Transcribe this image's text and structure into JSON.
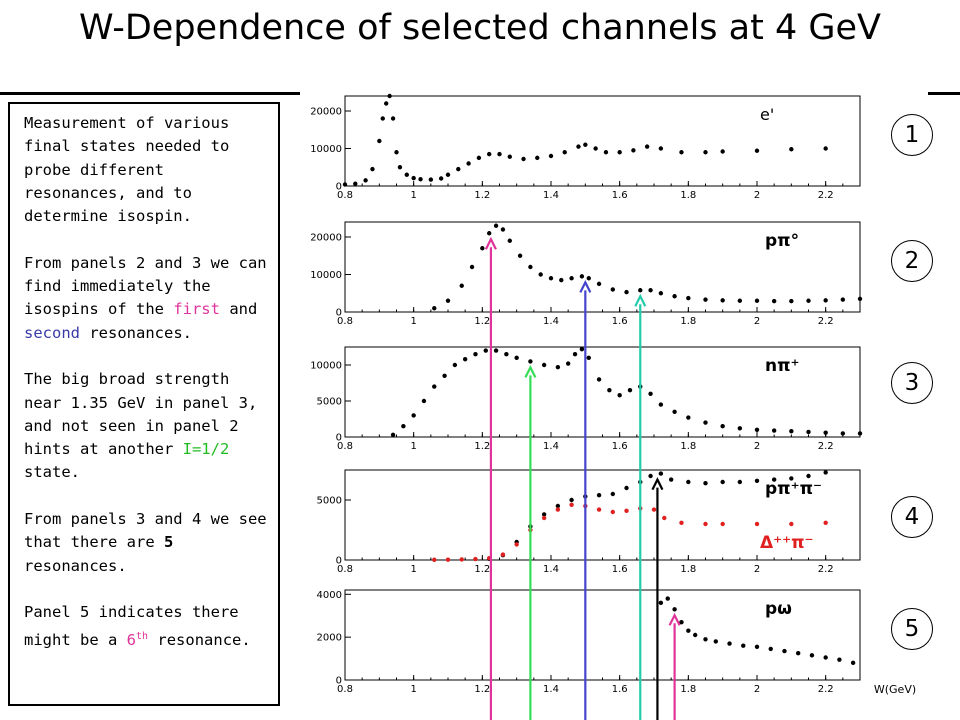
{
  "title": "W-Dependence of selected channels at 4 GeV",
  "textbox": {
    "p1": "Measurement of various final states needed to probe different resonances, and to determine isospin.",
    "p2_pre": "From panels 2 and 3 we can find immediately the isospins of the ",
    "p2_first": "first",
    "p2_mid": " and ",
    "p2_second": "second",
    "p2_post": " resonances.",
    "p3_pre": "The big broad strength near 1.35 GeV in panel 3, and not seen in panel 2 hints at another ",
    "p3_iso": "I=1/2",
    "p3_post": " state.",
    "p4_pre": "From panels 3 and 4 we see that there are ",
    "p4_num": "5",
    "p4_post": " resonances.",
    "p5_pre": "Panel 5 indicates there might be a ",
    "p5_num": "6",
    "p5_sup": "th",
    "p5_post": " resonance."
  },
  "panel_numbers": [
    "1",
    "2",
    "3",
    "4",
    "5"
  ],
  "xaxis_label": "W(GeV)",
  "chart_data": [
    {
      "type": "scatter",
      "panel": "1",
      "label": "e'",
      "xlim": [
        0.8,
        2.3
      ],
      "ylim": [
        0,
        24000
      ],
      "x_ticks": [
        "0.8",
        "1",
        "1.2",
        "1.4",
        "1.6",
        "1.8",
        "2",
        "2.2"
      ],
      "y_ticks": [
        "0",
        "10000",
        "20000"
      ],
      "series": [
        {
          "color": "#000000",
          "points": [
            [
              0.8,
              400
            ],
            [
              0.83,
              600
            ],
            [
              0.86,
              1500
            ],
            [
              0.88,
              4500
            ],
            [
              0.9,
              12000
            ],
            [
              0.91,
              18000
            ],
            [
              0.92,
              22000
            ],
            [
              0.93,
              24000
            ],
            [
              0.94,
              18000
            ],
            [
              0.95,
              9000
            ],
            [
              0.96,
              5000
            ],
            [
              0.98,
              3000
            ],
            [
              1.0,
              2100
            ],
            [
              1.02,
              1800
            ],
            [
              1.05,
              1700
            ],
            [
              1.08,
              2000
            ],
            [
              1.1,
              3000
            ],
            [
              1.13,
              4500
            ],
            [
              1.16,
              6000
            ],
            [
              1.19,
              7500
            ],
            [
              1.22,
              8500
            ],
            [
              1.25,
              8500
            ],
            [
              1.28,
              7800
            ],
            [
              1.32,
              7200
            ],
            [
              1.36,
              7500
            ],
            [
              1.4,
              8000
            ],
            [
              1.44,
              9000
            ],
            [
              1.48,
              10500
            ],
            [
              1.5,
              11000
            ],
            [
              1.53,
              10000
            ],
            [
              1.56,
              9000
            ],
            [
              1.6,
              9000
            ],
            [
              1.64,
              9500
            ],
            [
              1.68,
              10500
            ],
            [
              1.72,
              10000
            ],
            [
              1.78,
              9000
            ],
            [
              1.85,
              9000
            ],
            [
              1.9,
              9200
            ],
            [
              2.0,
              9400
            ],
            [
              2.1,
              9800
            ],
            [
              2.2,
              10000
            ]
          ]
        }
      ]
    },
    {
      "type": "scatter",
      "panel": "2",
      "label": "pπ°",
      "xlim": [
        0.8,
        2.3
      ],
      "ylim": [
        0,
        24000
      ],
      "x_ticks": [
        "0.8",
        "1",
        "1.2",
        "1.4",
        "1.6",
        "1.8",
        "2",
        "2.2"
      ],
      "y_ticks": [
        "0",
        "10000",
        "20000"
      ],
      "series": [
        {
          "color": "#000000",
          "points": [
            [
              1.06,
              1000
            ],
            [
              1.1,
              3000
            ],
            [
              1.14,
              7000
            ],
            [
              1.17,
              12000
            ],
            [
              1.2,
              17000
            ],
            [
              1.22,
              21000
            ],
            [
              1.24,
              23000
            ],
            [
              1.26,
              22000
            ],
            [
              1.28,
              19000
            ],
            [
              1.31,
              15000
            ],
            [
              1.34,
              12000
            ],
            [
              1.37,
              10000
            ],
            [
              1.4,
              9000
            ],
            [
              1.43,
              8500
            ],
            [
              1.46,
              9000
            ],
            [
              1.49,
              9500
            ],
            [
              1.51,
              9000
            ],
            [
              1.54,
              7500
            ],
            [
              1.58,
              6000
            ],
            [
              1.62,
              5300
            ],
            [
              1.66,
              5800
            ],
            [
              1.69,
              5800
            ],
            [
              1.72,
              5000
            ],
            [
              1.76,
              4200
            ],
            [
              1.8,
              3700
            ],
            [
              1.85,
              3300
            ],
            [
              1.9,
              3100
            ],
            [
              1.95,
              3000
            ],
            [
              2.0,
              3000
            ],
            [
              2.05,
              2900
            ],
            [
              2.1,
              2900
            ],
            [
              2.15,
              3000
            ],
            [
              2.2,
              3100
            ],
            [
              2.25,
              3300
            ],
            [
              2.3,
              3500
            ]
          ]
        }
      ]
    },
    {
      "type": "scatter",
      "panel": "3",
      "label": "nπ⁺",
      "xlim": [
        0.8,
        2.3
      ],
      "ylim": [
        0,
        12500
      ],
      "x_ticks": [
        "0.8",
        "1",
        "1.2",
        "1.4",
        "1.6",
        "1.8",
        "2",
        "2.2"
      ],
      "y_ticks": [
        "0",
        "5000",
        "10000"
      ],
      "series": [
        {
          "color": "#000000",
          "points": [
            [
              0.94,
              300
            ],
            [
              0.97,
              1500
            ],
            [
              1.0,
              3000
            ],
            [
              1.03,
              5000
            ],
            [
              1.06,
              7000
            ],
            [
              1.09,
              8500
            ],
            [
              1.12,
              10000
            ],
            [
              1.15,
              10800
            ],
            [
              1.18,
              11500
            ],
            [
              1.21,
              12000
            ],
            [
              1.24,
              12000
            ],
            [
              1.27,
              11500
            ],
            [
              1.3,
              11000
            ],
            [
              1.34,
              10500
            ],
            [
              1.38,
              10000
            ],
            [
              1.42,
              9700
            ],
            [
              1.45,
              10200
            ],
            [
              1.47,
              11500
            ],
            [
              1.49,
              12200
            ],
            [
              1.51,
              11000
            ],
            [
              1.54,
              8000
            ],
            [
              1.57,
              6500
            ],
            [
              1.6,
              5800
            ],
            [
              1.63,
              6500
            ],
            [
              1.66,
              7000
            ],
            [
              1.69,
              6000
            ],
            [
              1.72,
              4500
            ],
            [
              1.76,
              3500
            ],
            [
              1.8,
              2700
            ],
            [
              1.85,
              2000
            ],
            [
              1.9,
              1500
            ],
            [
              1.95,
              1200
            ],
            [
              2.0,
              1000
            ],
            [
              2.05,
              900
            ],
            [
              2.1,
              800
            ],
            [
              2.15,
              700
            ],
            [
              2.2,
              600
            ],
            [
              2.25,
              500
            ],
            [
              2.3,
              500
            ]
          ]
        }
      ]
    },
    {
      "type": "scatter",
      "panel": "4",
      "label": "pπ⁺π⁻",
      "label2": "Δ⁺⁺π⁻",
      "xlim": [
        0.8,
        2.3
      ],
      "ylim": [
        0,
        7500
      ],
      "x_ticks": [
        "0.8",
        "1",
        "1.2",
        "1.4",
        "1.6",
        "1.8",
        "2",
        "2.2"
      ],
      "y_ticks": [
        "0",
        "5000"
      ],
      "series": [
        {
          "name": "pπ⁺π⁻",
          "color": "#000000",
          "points": [
            [
              1.22,
              100
            ],
            [
              1.26,
              400
            ],
            [
              1.3,
              1500
            ],
            [
              1.34,
              2800
            ],
            [
              1.38,
              3800
            ],
            [
              1.42,
              4500
            ],
            [
              1.46,
              5000
            ],
            [
              1.5,
              5300
            ],
            [
              1.54,
              5400
            ],
            [
              1.58,
              5500
            ],
            [
              1.62,
              6000
            ],
            [
              1.66,
              6500
            ],
            [
              1.69,
              7000
            ],
            [
              1.72,
              7200
            ],
            [
              1.75,
              6700
            ],
            [
              1.8,
              6500
            ],
            [
              1.85,
              6400
            ],
            [
              1.9,
              6500
            ],
            [
              1.95,
              6500
            ],
            [
              2.0,
              6600
            ],
            [
              2.05,
              6700
            ],
            [
              2.1,
              6800
            ],
            [
              2.15,
              7000
            ],
            [
              2.2,
              7300
            ]
          ]
        },
        {
          "name": "Δ⁺⁺π⁻",
          "color": "#e02020",
          "points": [
            [
              1.06,
              20
            ],
            [
              1.1,
              30
            ],
            [
              1.14,
              50
            ],
            [
              1.18,
              80
            ],
            [
              1.22,
              150
            ],
            [
              1.26,
              450
            ],
            [
              1.3,
              1300
            ],
            [
              1.34,
              2500
            ],
            [
              1.38,
              3500
            ],
            [
              1.42,
              4200
            ],
            [
              1.46,
              4600
            ],
            [
              1.5,
              4500
            ],
            [
              1.54,
              4200
            ],
            [
              1.58,
              4000
            ],
            [
              1.62,
              4100
            ],
            [
              1.66,
              4300
            ],
            [
              1.7,
              4200
            ],
            [
              1.73,
              3500
            ],
            [
              1.78,
              3100
            ],
            [
              1.85,
              3000
            ],
            [
              1.9,
              3000
            ],
            [
              2.0,
              3000
            ],
            [
              2.1,
              3000
            ],
            [
              2.2,
              3100
            ]
          ]
        }
      ]
    },
    {
      "type": "scatter",
      "panel": "5",
      "label": "pω",
      "xlim": [
        0.8,
        2.3
      ],
      "ylim": [
        0,
        4200
      ],
      "x_ticks": [
        "0.8",
        "1",
        "1.2",
        "1.4",
        "1.6",
        "1.8",
        "2",
        "2.2"
      ],
      "y_ticks": [
        "0",
        "2000",
        "4000"
      ],
      "series": [
        {
          "color": "#000000",
          "points": [
            [
              1.72,
              3600
            ],
            [
              1.74,
              3800
            ],
            [
              1.76,
              3300
            ],
            [
              1.78,
              2700
            ],
            [
              1.8,
              2300
            ],
            [
              1.82,
              2100
            ],
            [
              1.85,
              1900
            ],
            [
              1.88,
              1800
            ],
            [
              1.92,
              1700
            ],
            [
              1.96,
              1600
            ],
            [
              2.0,
              1550
            ],
            [
              2.04,
              1450
            ],
            [
              2.08,
              1350
            ],
            [
              2.12,
              1250
            ],
            [
              2.16,
              1150
            ],
            [
              2.2,
              1050
            ],
            [
              2.24,
              950
            ],
            [
              2.28,
              800
            ]
          ]
        }
      ]
    }
  ],
  "arrows": [
    {
      "x": 1.225,
      "color": "#e0339a",
      "from_panel": "5",
      "to_panel": "2"
    },
    {
      "x": 1.34,
      "color": "#33dd55",
      "from_panel": "5",
      "to_panel": "3"
    },
    {
      "x": 1.5,
      "color": "#4444cc",
      "from_panel": "5",
      "to_panel": "2"
    },
    {
      "x": 1.66,
      "color": "#22ccaa",
      "from_panel": "5",
      "to_panel": "2"
    },
    {
      "x": 1.71,
      "color": "#000000",
      "from_panel": "5",
      "to_panel": "4"
    },
    {
      "x": 1.76,
      "color": "#e0339a",
      "from_panel": "5",
      "to_panel": "5"
    }
  ]
}
